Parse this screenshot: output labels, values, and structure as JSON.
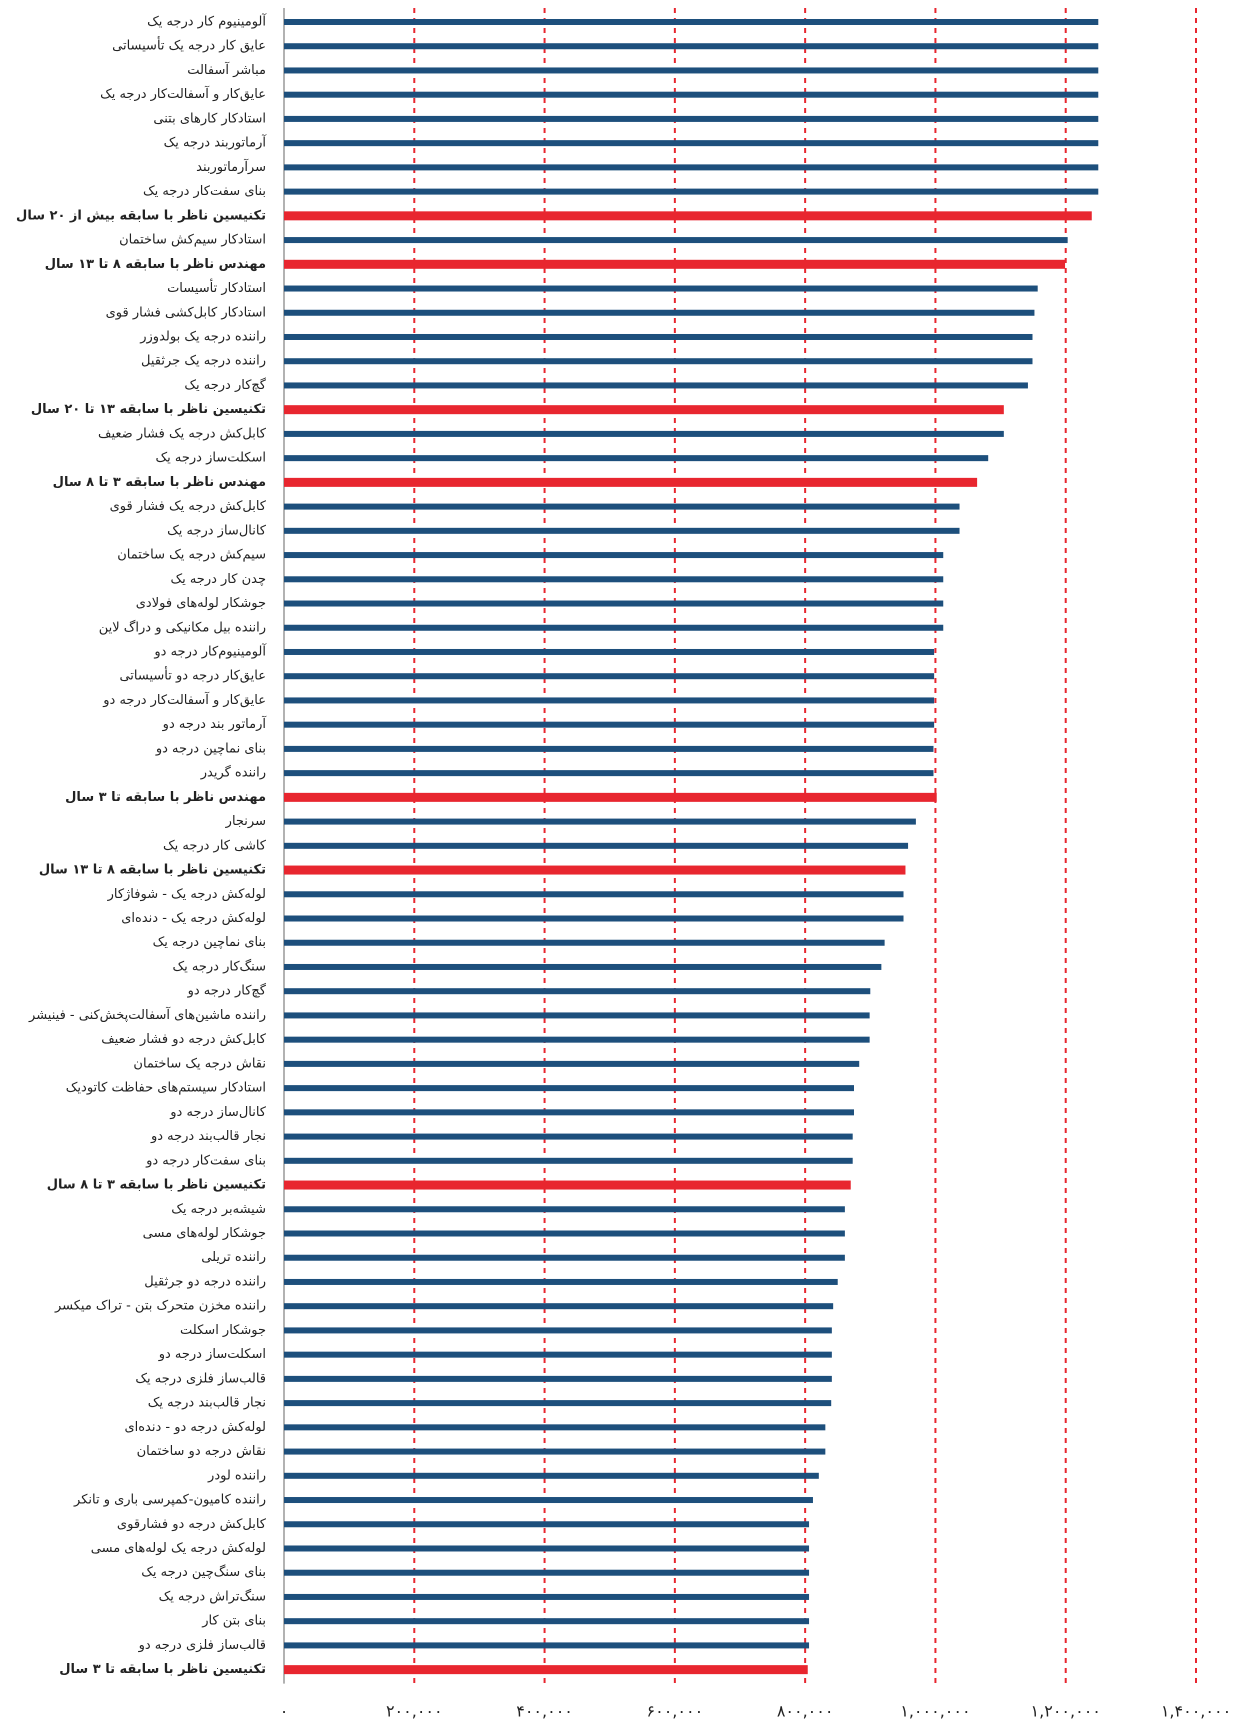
{
  "chart_data": {
    "type": "barh",
    "categories": [
      "آلومینیوم کار درجه یک",
      "عایق کار درجه یک تأسیساتی",
      "مباشر آسفالت",
      "عایق‌کار و آسفالت‌کار درجه یک",
      "استادکار کارهای بتنی",
      "آرماتوربند درجه یک",
      "سرآرماتوربند",
      "بنای سفت‌کار درجه یک",
      "تکنیسین ناظر با سابقه بیش از ۲۰ سال",
      "استادکار سیم‌کش ساختمان",
      "مهندس ناظر با سابقه ۸ تا ۱۳ سال",
      "استادکار تأسیسات",
      "استادکار کابل‌کشی فشار قوی",
      "راننده درجه یک بولدوزر",
      "راننده درجه یک جرثقیل",
      "گچ‌کار درجه یک",
      "تکنیسین ناظر با سابقه ۱۳ تا ۲۰ سال",
      "کابل‌کش درجه یک فشار ضعیف",
      "اسکلت‌ساز درجه یک",
      "مهندس ناظر با سابقه ۳ تا ۸ سال",
      "کابل‌کش درجه یک فشار قوی",
      "کانال‌ساز درجه یک",
      "سیم‌کش درجه یک ساختمان",
      "چدن کار درجه یک",
      "جوشکار لوله‌های فولادی",
      "راننده بیل مکانیکی و دراگ لاین",
      "آلومینیوم‌کار درجه دو",
      "عایق‌کار درجه دو تأسیساتی",
      "عایق‌کار و آسفالت‌کار درجه دو",
      "آرماتور بند درجه دو",
      "بنای نماچین درجه دو",
      "راننده گریدر",
      "مهندس ناظر با سابقه تا ۳ سال",
      "سرنجار",
      "کاشی کار درجه یک",
      "تکنیسین ناظر با سابقه ۸ تا ۱۳ سال",
      "لوله‌کش درجه یک - شوفاژکار",
      "لوله‌کش درجه یک - دنده‌ای",
      "بنای نماچین درجه یک",
      "سنگ‌کار درجه یک",
      "گچ‌کار درجه دو",
      "راننده ماشین‌های آسفالت‌پخش‌کنی - فینیشر",
      "کابل‌کش درجه دو فشار ضعیف",
      "نقاش درجه یک ساختمان",
      "استادکار سیستم‌های حفاظت کاتودیک",
      "کانال‌ساز درجه دو",
      "نجار قالب‌بند درجه دو",
      "بنای سفت‌کار درجه دو",
      "تکنیسین ناظر با سابقه ۳ تا ۸ سال",
      "شیشه‌بر درجه یک",
      "جوشکار لوله‌های مسی",
      "راننده تریلی",
      "راننده درجه دو جرثقیل",
      "راننده مخزن متحرک بتن - تراک میکسر",
      "جوشکار اسکلت",
      "اسکلت‌ساز درجه دو",
      "قالب‌ساز فلزی درجه یک",
      "نجار قالب‌بند درجه یک",
      "لوله‌کش درجه دو - دنده‌ای",
      "نقاش درجه دو ساختمان",
      "راننده لودر",
      "راننده کامیون-کمپرسی باری و تانکر",
      "کابل‌کش درجه دو فشارقوی",
      "لوله‌کش درجه یک لوله‌های مسی",
      "بنای سنگ‌چین درجه یک",
      "سنگ‌تراش درجه یک",
      "بنای بتن کار",
      "قالب‌ساز فلزی درجه دو",
      "تکنیسین ناظر با سابقه تا ۳ سال"
    ],
    "values": [
      1250000,
      1250000,
      1250000,
      1250000,
      1250000,
      1250000,
      1250000,
      1250000,
      1240000,
      1203000,
      1199000,
      1157000,
      1152000,
      1149000,
      1149000,
      1142000,
      1105000,
      1105000,
      1081000,
      1064000,
      1037000,
      1037000,
      1012000,
      1012000,
      1012000,
      1012000,
      998000,
      998000,
      998000,
      998000,
      997000,
      997000,
      1002000,
      970000,
      958000,
      954000,
      951000,
      951000,
      922000,
      917000,
      900000,
      899000,
      899000,
      883000,
      875000,
      875000,
      873000,
      873000,
      870000,
      861000,
      861000,
      861000,
      850000,
      843000,
      841000,
      841000,
      841000,
      840000,
      831000,
      831000,
      821000,
      812000,
      806000,
      806000,
      806000,
      806000,
      806000,
      806000,
      804000
    ],
    "colors": [
      "#1d4f7c",
      "#1d4f7c",
      "#1d4f7c",
      "#1d4f7c",
      "#1d4f7c",
      "#1d4f7c",
      "#1d4f7c",
      "#1d4f7c",
      "#e8262f",
      "#1d4f7c",
      "#e8262f",
      "#1d4f7c",
      "#1d4f7c",
      "#1d4f7c",
      "#1d4f7c",
      "#1d4f7c",
      "#e8262f",
      "#1d4f7c",
      "#1d4f7c",
      "#e8262f",
      "#1d4f7c",
      "#1d4f7c",
      "#1d4f7c",
      "#1d4f7c",
      "#1d4f7c",
      "#1d4f7c",
      "#1d4f7c",
      "#1d4f7c",
      "#1d4f7c",
      "#1d4f7c",
      "#1d4f7c",
      "#1d4f7c",
      "#e8262f",
      "#1d4f7c",
      "#1d4f7c",
      "#e8262f",
      "#1d4f7c",
      "#1d4f7c",
      "#1d4f7c",
      "#1d4f7c",
      "#1d4f7c",
      "#1d4f7c",
      "#1d4f7c",
      "#1d4f7c",
      "#1d4f7c",
      "#1d4f7c",
      "#1d4f7c",
      "#1d4f7c",
      "#e8262f",
      "#1d4f7c",
      "#1d4f7c",
      "#1d4f7c",
      "#1d4f7c",
      "#1d4f7c",
      "#1d4f7c",
      "#1d4f7c",
      "#1d4f7c",
      "#1d4f7c",
      "#1d4f7c",
      "#1d4f7c",
      "#1d4f7c",
      "#1d4f7c",
      "#1d4f7c",
      "#1d4f7c",
      "#1d4f7c",
      "#1d4f7c",
      "#1d4f7c",
      "#1d4f7c",
      "#e8262f"
    ],
    "xlim": [
      0,
      1400000
    ],
    "xticks": [
      {
        "value": 0,
        "label": "۰"
      },
      {
        "value": 200000,
        "label": "۲۰۰,۰۰۰"
      },
      {
        "value": 400000,
        "label": "۴۰۰,۰۰۰"
      },
      {
        "value": 600000,
        "label": "۶۰۰,۰۰۰"
      },
      {
        "value": 800000,
        "label": "۸۰۰,۰۰۰"
      },
      {
        "value": 1000000,
        "label": "۱,۰۰۰,۰۰۰"
      },
      {
        "value": 1200000,
        "label": "۱,۲۰۰,۰۰۰"
      },
      {
        "value": 1400000,
        "label": "۱,۴۰۰,۰۰۰"
      }
    ],
    "grid": true,
    "grid_color": "#e8262f"
  }
}
